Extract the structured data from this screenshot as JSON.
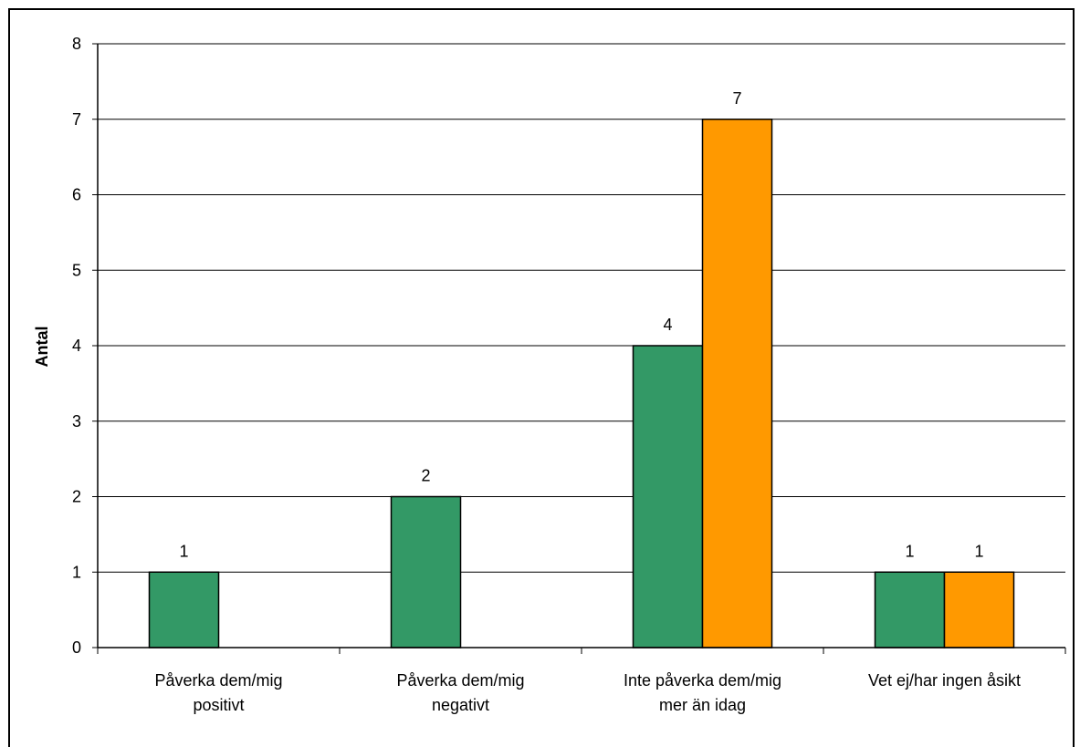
{
  "chart_data": {
    "type": "bar",
    "title": "",
    "xlabel": "",
    "ylabel": "Antal",
    "ylim": [
      0,
      8
    ],
    "yticks": [
      "0",
      "1",
      "2",
      "3",
      "4",
      "5",
      "6",
      "7",
      "8"
    ],
    "categories": [
      [
        "Påverka dem/mig",
        "positivt"
      ],
      [
        "Påverka dem/mig",
        "negativt"
      ],
      [
        "Inte påverka dem/mig",
        "mer än idag"
      ],
      [
        "Vet ej/har ingen åsikt"
      ]
    ],
    "series": [
      {
        "color": "#339966",
        "values": [
          1,
          2,
          4,
          1
        ]
      },
      {
        "color": "#FF9900",
        "values": [
          null,
          null,
          7,
          1
        ]
      }
    ],
    "grid": true,
    "legend": "none"
  }
}
